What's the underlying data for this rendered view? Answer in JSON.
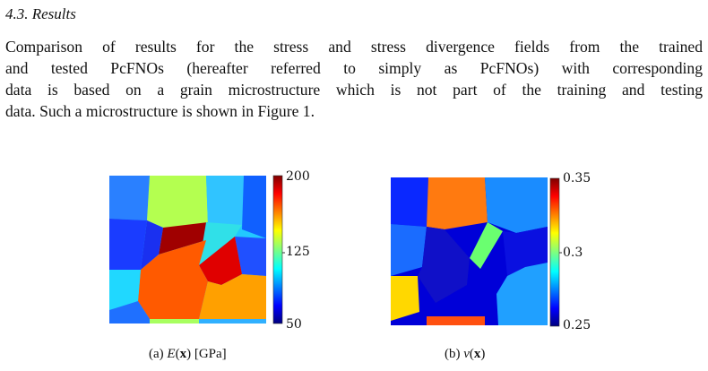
{
  "heading": "4.3. Results",
  "paragraph": [
    "Comparison of results for the stress and stress divergence fields from the trained",
    "and tested PcFNOs (hereafter referred to simply as PcFNOs) with corresponding",
    "data is based on a grain microstructure which is not part of the training and testing",
    "data. Such a microstructure is shown in Figure 1."
  ],
  "figures": [
    {
      "caption": [
        "(a) ",
        "E",
        "(",
        "x",
        ") [GPa]"
      ],
      "colorbar_ticks": [
        200,
        125,
        50
      ]
    },
    {
      "caption": [
        "(b) ",
        "ν",
        "(",
        "x",
        ")"
      ],
      "colorbar_ticks": [
        0.35,
        0.3,
        0.25
      ]
    }
  ]
}
